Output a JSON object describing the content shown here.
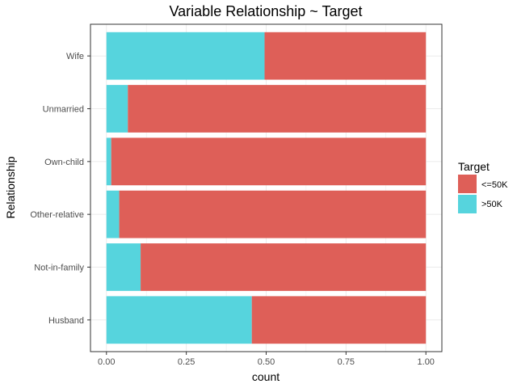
{
  "chart_data": {
    "type": "bar",
    "orientation": "horizontal",
    "stacked": true,
    "normalized": true,
    "title": "Variable Relationship ~ Target",
    "xlabel": "count",
    "ylabel": "Relationship",
    "xlim": [
      0,
      1
    ],
    "x_ticks": [
      "0.00",
      "0.25",
      "0.50",
      "0.75",
      "1.00"
    ],
    "categories": [
      "Husband",
      "Not-in-family",
      "Other-relative",
      "Own-child",
      "Unmarried",
      "Wife"
    ],
    "series": [
      {
        "name": ">50K",
        "color": "#56D4DD",
        "values": [
          0.455,
          0.107,
          0.04,
          0.015,
          0.067,
          0.495
        ]
      },
      {
        "name": "<=50K",
        "color": "#DE5F58",
        "values": [
          0.545,
          0.893,
          0.96,
          0.985,
          0.933,
          0.505
        ]
      }
    ],
    "legend": {
      "title": "Target",
      "position": "right",
      "entries": [
        {
          "label": "<=50K",
          "color": "#DE5F58"
        },
        {
          "label": ">50K",
          "color": "#56D4DD"
        }
      ]
    },
    "grid": true
  }
}
